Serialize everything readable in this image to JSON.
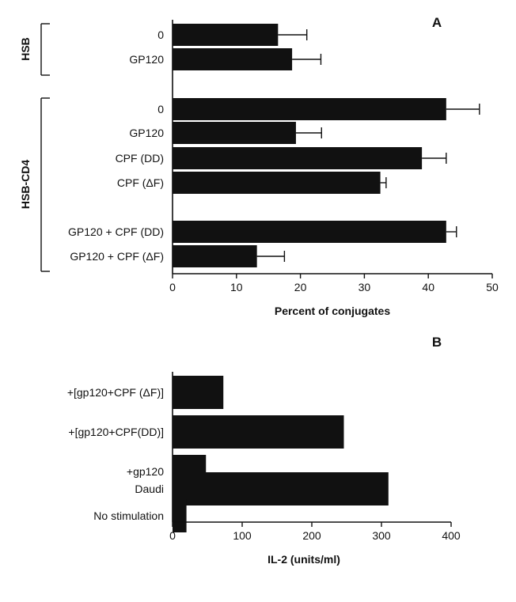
{
  "chart_data": [
    {
      "type": "bar",
      "orientation": "horizontal",
      "panel_label": "A",
      "xlabel": "Percent of conjugates",
      "xlim": [
        0,
        50
      ],
      "xticks": [
        0,
        10,
        20,
        30,
        40,
        50
      ],
      "error_bars": true,
      "groups": [
        {
          "name": "HSB",
          "members": [
            0,
            1
          ]
        },
        {
          "name": "HSB-CD4",
          "members": [
            2,
            3,
            4,
            5,
            6,
            7
          ]
        }
      ],
      "bars": [
        {
          "label": "0",
          "value": 16.5,
          "error": 4.5
        },
        {
          "label": "GP120",
          "value": 18.7,
          "error": 4.5
        },
        {
          "label": "0",
          "value": 42.8,
          "error": 5.2
        },
        {
          "label": "GP120",
          "value": 19.3,
          "error": 4.0
        },
        {
          "label": "CPF (DD)",
          "value": 39.0,
          "error": 3.8
        },
        {
          "label": "CPF (ΔF)",
          "value": 32.5,
          "error": 0.9
        },
        {
          "label": "GP120 + CPF (DD)",
          "value": 42.8,
          "error": 1.6
        },
        {
          "label": "GP120 + CPF (ΔF)",
          "value": 13.2,
          "error": 4.3
        }
      ]
    },
    {
      "type": "bar",
      "orientation": "horizontal",
      "panel_label": "B",
      "xlabel": "IL-2 (units/ml)",
      "xlim": [
        0,
        400
      ],
      "xticks": [
        0,
        100,
        200,
        300,
        400
      ],
      "bars": [
        {
          "label": "+[gp120+CPF (ΔF)]",
          "value": 73
        },
        {
          "label": "+[gp120+CPF(DD)]",
          "value": 246
        },
        {
          "label": "+gp120",
          "value": 48
        },
        {
          "label": "Daudi",
          "value": 310
        },
        {
          "label": "No stimulation",
          "value": 20
        }
      ]
    }
  ],
  "style": {
    "bar_color": "#111111",
    "axis_color": "#111111"
  }
}
